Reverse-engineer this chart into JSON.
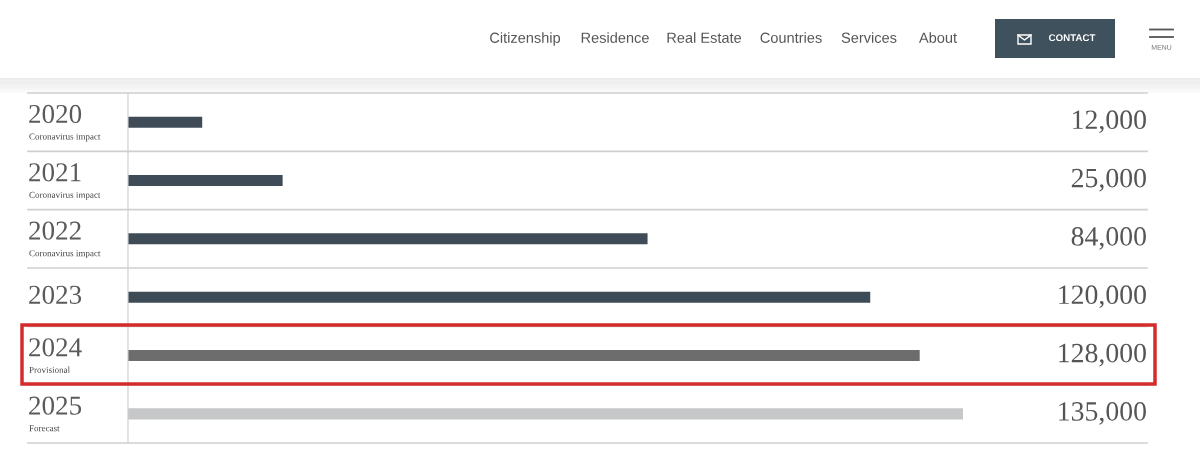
{
  "chart_data": {
    "type": "bar",
    "orientation": "horizontal",
    "categories": [
      "2020\nCoronavirus impact",
      "2021\nCoronavirus impact",
      "2022\nCoronavirus impact",
      "2023",
      "2024\nProvisional",
      "2025\nForecast"
    ],
    "values": [
      12000,
      25000,
      84000,
      120000,
      128000,
      135000
    ],
    "colors": [
      "#3f4c58",
      "#3f4c58",
      "#3f4c58",
      "#3d4b57",
      "#6d6d6d",
      "#c6c7c8"
    ],
    "value_labels": [
      "12,000",
      "25,000",
      "84,000",
      "120,000",
      "128,000",
      "135,000"
    ],
    "grid": "y",
    "tick_labels": "y",
    "annotations": [
      "Citizenship",
      "Residence",
      "Real Estate",
      "Countries",
      "Services",
      "About",
      "CONTACT",
      "MENU"
    ]
  }
}
